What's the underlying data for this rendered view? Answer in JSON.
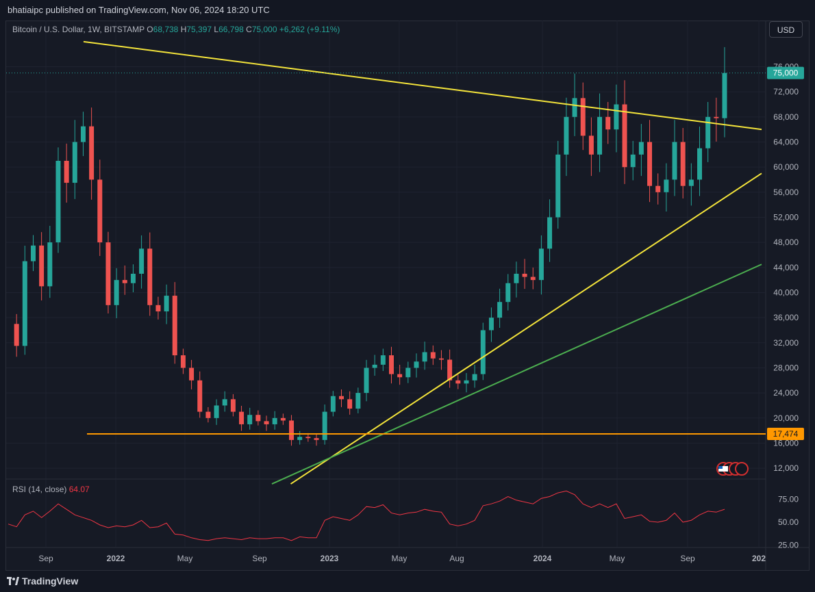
{
  "header": {
    "published": "bhatiaipc published on TradingView.com, Nov 06, 2024 18:20 UTC"
  },
  "legend": {
    "symbol": "Bitcoin / U.S. Dollar, 1W, BITSTAMP",
    "o_label": "O",
    "o": "68,738",
    "h_label": "H",
    "h": "75,397",
    "l_label": "L",
    "l": "66,798",
    "c_label": "C",
    "c": "75,000",
    "change": "+6,262 (+9.11%)"
  },
  "currency_button": "USD",
  "rsi": {
    "label": "RSI (14, close)",
    "value": "64.07"
  },
  "footer": {
    "brand": "TradingView"
  },
  "colors": {
    "up": "#26a69a",
    "down": "#ef5350",
    "trend": "#f5e53b",
    "support": "#4caf50",
    "level": "#ff9800",
    "rsi": "#f23645"
  },
  "chart_data": {
    "type": "candlestick",
    "x_ticks": [
      "Sep",
      "2022",
      "May",
      "Sep",
      "2023",
      "May",
      "Aug",
      "2024",
      "May",
      "Sep",
      "202"
    ],
    "y_ticks": [
      "76,000",
      "72,000",
      "68,000",
      "64,000",
      "60,000",
      "56,000",
      "52,000",
      "48,000",
      "44,000",
      "40,000",
      "36,000",
      "32,000",
      "28,000",
      "24,000",
      "20,000",
      "16,000",
      "12,000"
    ],
    "rsi_ticks": [
      "75.00",
      "50.00",
      "25.00"
    ],
    "price_tag": "75,000",
    "level_tag": "17,474",
    "level": 17474,
    "last_close": 75000,
    "price_path": [
      35000,
      31500,
      45000,
      47500,
      41000,
      48000,
      61000,
      57500,
      64000,
      66500,
      58000,
      48000,
      38000,
      42000,
      41500,
      43000,
      47000,
      38000,
      37000,
      39500,
      30000,
      28000,
      26000,
      21000,
      20000,
      22000,
      23000,
      21000,
      19000,
      20500,
      19500,
      19000,
      20000,
      19600,
      16500,
      17000,
      16800,
      16500,
      21000,
      23500,
      23000,
      21500,
      24000,
      28000,
      28500,
      30000,
      27000,
      26500,
      28000,
      29000,
      30500,
      29500,
      29300,
      26000,
      25500,
      26000,
      27000,
      34000,
      36000,
      38500,
      41500,
      43000,
      42500,
      42000,
      47000,
      52000,
      62000,
      68000,
      71000,
      65000,
      62000,
      68000,
      66000,
      70000,
      60000,
      62000,
      64000,
      57000,
      56000,
      58000,
      64000,
      57000,
      58000,
      63000,
      68000,
      67800,
      75000
    ],
    "rsi_path": [
      48,
      45,
      58,
      62,
      55,
      62,
      70,
      64,
      58,
      55,
      52,
      47,
      44,
      46,
      45,
      47,
      52,
      44,
      45,
      49,
      37,
      36,
      33,
      31,
      30,
      32,
      33,
      32,
      31,
      33,
      32,
      32,
      33,
      33,
      30,
      34,
      33,
      33,
      52,
      56,
      54,
      52,
      58,
      67,
      66,
      69,
      60,
      58,
      60,
      61,
      64,
      62,
      61,
      48,
      46,
      48,
      52,
      68,
      70,
      73,
      78,
      74,
      72,
      70,
      76,
      78,
      82,
      84,
      80,
      70,
      66,
      70,
      66,
      70,
      54,
      56,
      58,
      51,
      50,
      52,
      60,
      50,
      52,
      58,
      62,
      61,
      64.07
    ],
    "trendlines": [
      {
        "name": "upper",
        "from": [
          "2021-11",
          80000
        ],
        "to": [
          "2024-11",
          66000
        ]
      },
      {
        "name": "lower",
        "from": [
          "2022-10",
          9500
        ],
        "to": [
          "2024-11",
          59000
        ]
      },
      {
        "name": "support",
        "from": [
          "2022-09",
          9500
        ],
        "to": [
          "2024-11",
          44500
        ]
      }
    ]
  }
}
